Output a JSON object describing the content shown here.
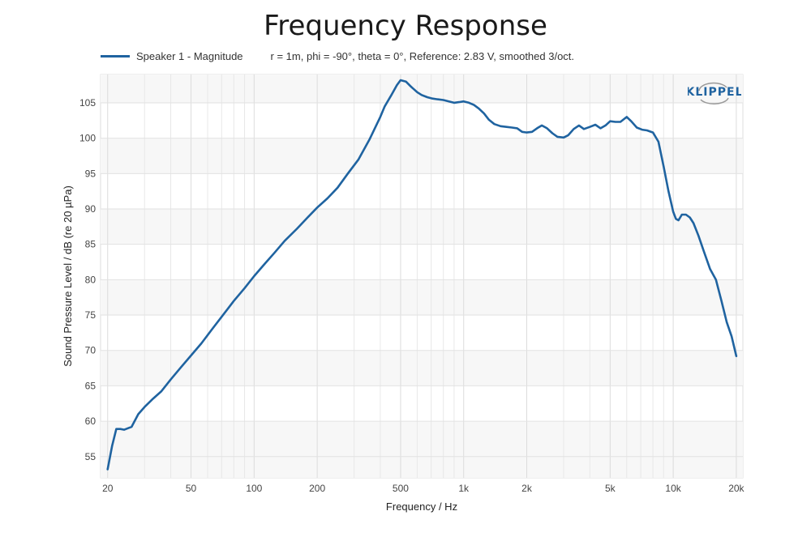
{
  "chart_data": {
    "type": "line",
    "title": "Frequency Response",
    "xlabel": "Frequency / Hz",
    "ylabel": "Sound Pressure Level / dB (re 20 µPa)",
    "xscale": "log",
    "xlim": [
      18.5,
      21500
    ],
    "ylim": [
      52,
      109
    ],
    "grid": true,
    "legend_position": "top-left",
    "legend_note": "r = 1m, phi = -90°, theta = 0°, Reference: 2.83 V, smoothed 3/oct.",
    "x_ticks": [
      {
        "value": 20,
        "label": "20"
      },
      {
        "value": 50,
        "label": "50"
      },
      {
        "value": 100,
        "label": "100"
      },
      {
        "value": 200,
        "label": "200"
      },
      {
        "value": 500,
        "label": "500"
      },
      {
        "value": 1000,
        "label": "1k"
      },
      {
        "value": 2000,
        "label": "2k"
      },
      {
        "value": 5000,
        "label": "5k"
      },
      {
        "value": 10000,
        "label": "10k"
      },
      {
        "value": 20000,
        "label": "20k"
      }
    ],
    "y_ticks": [
      55,
      60,
      65,
      70,
      75,
      80,
      85,
      90,
      95,
      100,
      105
    ],
    "series": [
      {
        "name": "Speaker 1 - Magnitude",
        "color": "#1f63a0",
        "x": [
          20,
          21,
          22,
          23,
          24,
          26,
          28,
          30,
          33,
          36,
          40,
          45,
          50,
          56,
          63,
          71,
          80,
          90,
          100,
          112,
          125,
          140,
          160,
          180,
          200,
          224,
          250,
          280,
          315,
          355,
          400,
          420,
          450,
          480,
          500,
          530,
          560,
          600,
          630,
          670,
          710,
          750,
          800,
          850,
          900,
          950,
          1000,
          1060,
          1120,
          1180,
          1250,
          1320,
          1400,
          1500,
          1600,
          1700,
          1800,
          1900,
          2000,
          2120,
          2240,
          2360,
          2500,
          2650,
          2800,
          3000,
          3150,
          3350,
          3550,
          3750,
          4000,
          4250,
          4500,
          4750,
          5000,
          5300,
          5600,
          6000,
          6300,
          6700,
          7100,
          7500,
          8000,
          8500,
          9000,
          9500,
          10000,
          10300,
          10600,
          11000,
          11500,
          12000,
          12500,
          13200,
          14000,
          15000,
          16000,
          17000,
          18000,
          19000,
          20000
        ],
        "values": [
          53.2,
          56.5,
          58.9,
          58.9,
          58.8,
          59.2,
          61.0,
          62.0,
          63.2,
          64.2,
          65.9,
          67.7,
          69.3,
          71.0,
          73.0,
          75.0,
          77.0,
          78.8,
          80.5,
          82.2,
          83.8,
          85.5,
          87.2,
          88.8,
          90.2,
          91.5,
          93.0,
          95.0,
          97.0,
          99.8,
          103.0,
          104.5,
          106.0,
          107.5,
          108.2,
          108.0,
          107.3,
          106.5,
          106.1,
          105.8,
          105.6,
          105.5,
          105.4,
          105.2,
          105.0,
          105.1,
          105.2,
          105.0,
          104.7,
          104.2,
          103.5,
          102.6,
          102.0,
          101.7,
          101.6,
          101.5,
          101.4,
          100.9,
          100.8,
          100.9,
          101.4,
          101.8,
          101.4,
          100.7,
          100.2,
          100.1,
          100.4,
          101.3,
          101.8,
          101.3,
          101.6,
          101.9,
          101.4,
          101.8,
          102.4,
          102.3,
          102.3,
          103.0,
          102.4,
          101.5,
          101.2,
          101.1,
          100.8,
          99.5,
          96.0,
          92.5,
          89.6,
          88.6,
          88.4,
          89.2,
          89.2,
          88.8,
          88.0,
          86.2,
          84.0,
          81.5,
          80.0,
          77.0,
          74.0,
          72.0,
          69.2
        ]
      }
    ]
  },
  "logo": {
    "text": "KLIPPEL",
    "color": "#1f63a0"
  }
}
